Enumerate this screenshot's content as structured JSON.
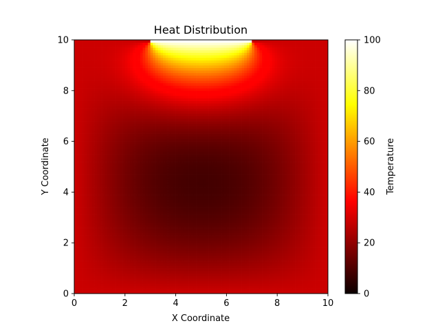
{
  "chart_data": {
    "type": "heatmap",
    "title": "Heat Distribution",
    "xlabel": "X Coordinate",
    "ylabel": "Y Coordinate",
    "xlim": [
      0,
      10
    ],
    "ylim": [
      0,
      10
    ],
    "x_ticks": [
      0,
      2,
      4,
      6,
      8,
      10
    ],
    "y_ticks": [
      0,
      2,
      4,
      6,
      8,
      10
    ],
    "grid_size": 100,
    "colormap": "hot",
    "colorbar": {
      "label": "Temperature",
      "range": [
        0,
        100
      ],
      "ticks": [
        0,
        20,
        40,
        60,
        80,
        100
      ]
    },
    "boundary_conditions": {
      "top_hot_segment": {
        "x_range": [
          3,
          7
        ],
        "temperature": 100
      },
      "edges": 25
    },
    "grid": false
  }
}
